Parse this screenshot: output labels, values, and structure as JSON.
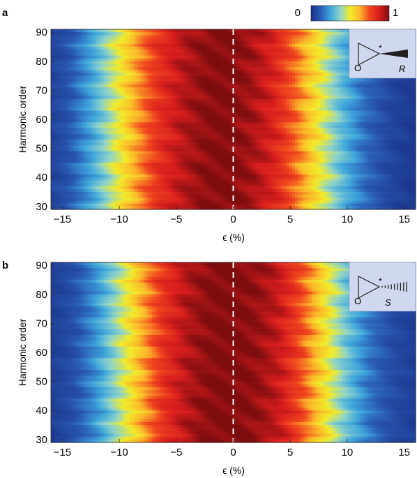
{
  "colorbar": {
    "min_label": "0",
    "max_label": "1",
    "colormap": [
      "#1a2f86",
      "#2a5cb6",
      "#3fa7dc",
      "#8fd3c9",
      "#f2ec2a",
      "#fbb62a",
      "#f0451f",
      "#d71d1e",
      "#7e0d0f"
    ]
  },
  "chart_data": [
    {
      "type": "heatmap",
      "panel_label": "a",
      "xlabel": "ϵ (%)",
      "ylabel": "Harmonic order",
      "xlim": [
        -16,
        16
      ],
      "ylim": [
        29,
        91
      ],
      "x_ticks": [
        -15,
        -10,
        -5,
        0,
        5,
        10,
        15
      ],
      "x_tick_labels": [
        "−15",
        "−10",
        "−5",
        "0",
        "5",
        "10",
        "15"
      ],
      "y_ticks": [
        30,
        40,
        50,
        60,
        70,
        80,
        90
      ],
      "y_tick_labels": [
        "30",
        "40",
        "50",
        "60",
        "70",
        "80",
        "90"
      ],
      "value_range": [
        0,
        1
      ],
      "center_line": {
        "x": 0,
        "style": "dashed"
      },
      "molecule_label": "R",
      "stereocenter_mark": "*",
      "peak_center_x": -1.5,
      "profile": {
        "x": [
          -16,
          -14,
          -12,
          -10,
          -8,
          -6,
          -4,
          -2,
          0,
          2,
          4,
          6,
          8,
          10,
          12,
          14,
          16
        ],
        "intensity": [
          0.04,
          0.1,
          0.25,
          0.45,
          0.65,
          0.82,
          0.92,
          0.98,
          1.0,
          0.95,
          0.86,
          0.7,
          0.5,
          0.3,
          0.15,
          0.07,
          0.03
        ]
      }
    },
    {
      "type": "heatmap",
      "panel_label": "b",
      "xlabel": "ϵ (%)",
      "ylabel": "Harmonic order",
      "xlim": [
        -16,
        16
      ],
      "ylim": [
        29,
        91
      ],
      "x_ticks": [
        -15,
        -10,
        -5,
        0,
        5,
        10,
        15
      ],
      "x_tick_labels": [
        "−15",
        "−10",
        "−5",
        "0",
        "5",
        "10",
        "15"
      ],
      "y_ticks": [
        30,
        40,
        50,
        60,
        70,
        80,
        90
      ],
      "y_tick_labels": [
        "30",
        "40",
        "50",
        "60",
        "70",
        "80",
        "90"
      ],
      "value_range": [
        0,
        1
      ],
      "center_line": {
        "x": 0,
        "style": "dashed"
      },
      "molecule_label": "S",
      "stereocenter_mark": "*",
      "peak_center_x": 0.0,
      "profile": {
        "x": [
          -16,
          -14,
          -12,
          -10,
          -8,
          -6,
          -4,
          -2,
          0,
          2,
          4,
          6,
          8,
          10,
          12,
          14,
          16
        ],
        "intensity": [
          0.04,
          0.09,
          0.22,
          0.42,
          0.63,
          0.82,
          0.93,
          0.99,
          1.0,
          0.97,
          0.9,
          0.74,
          0.53,
          0.32,
          0.16,
          0.08,
          0.04
        ]
      }
    }
  ]
}
